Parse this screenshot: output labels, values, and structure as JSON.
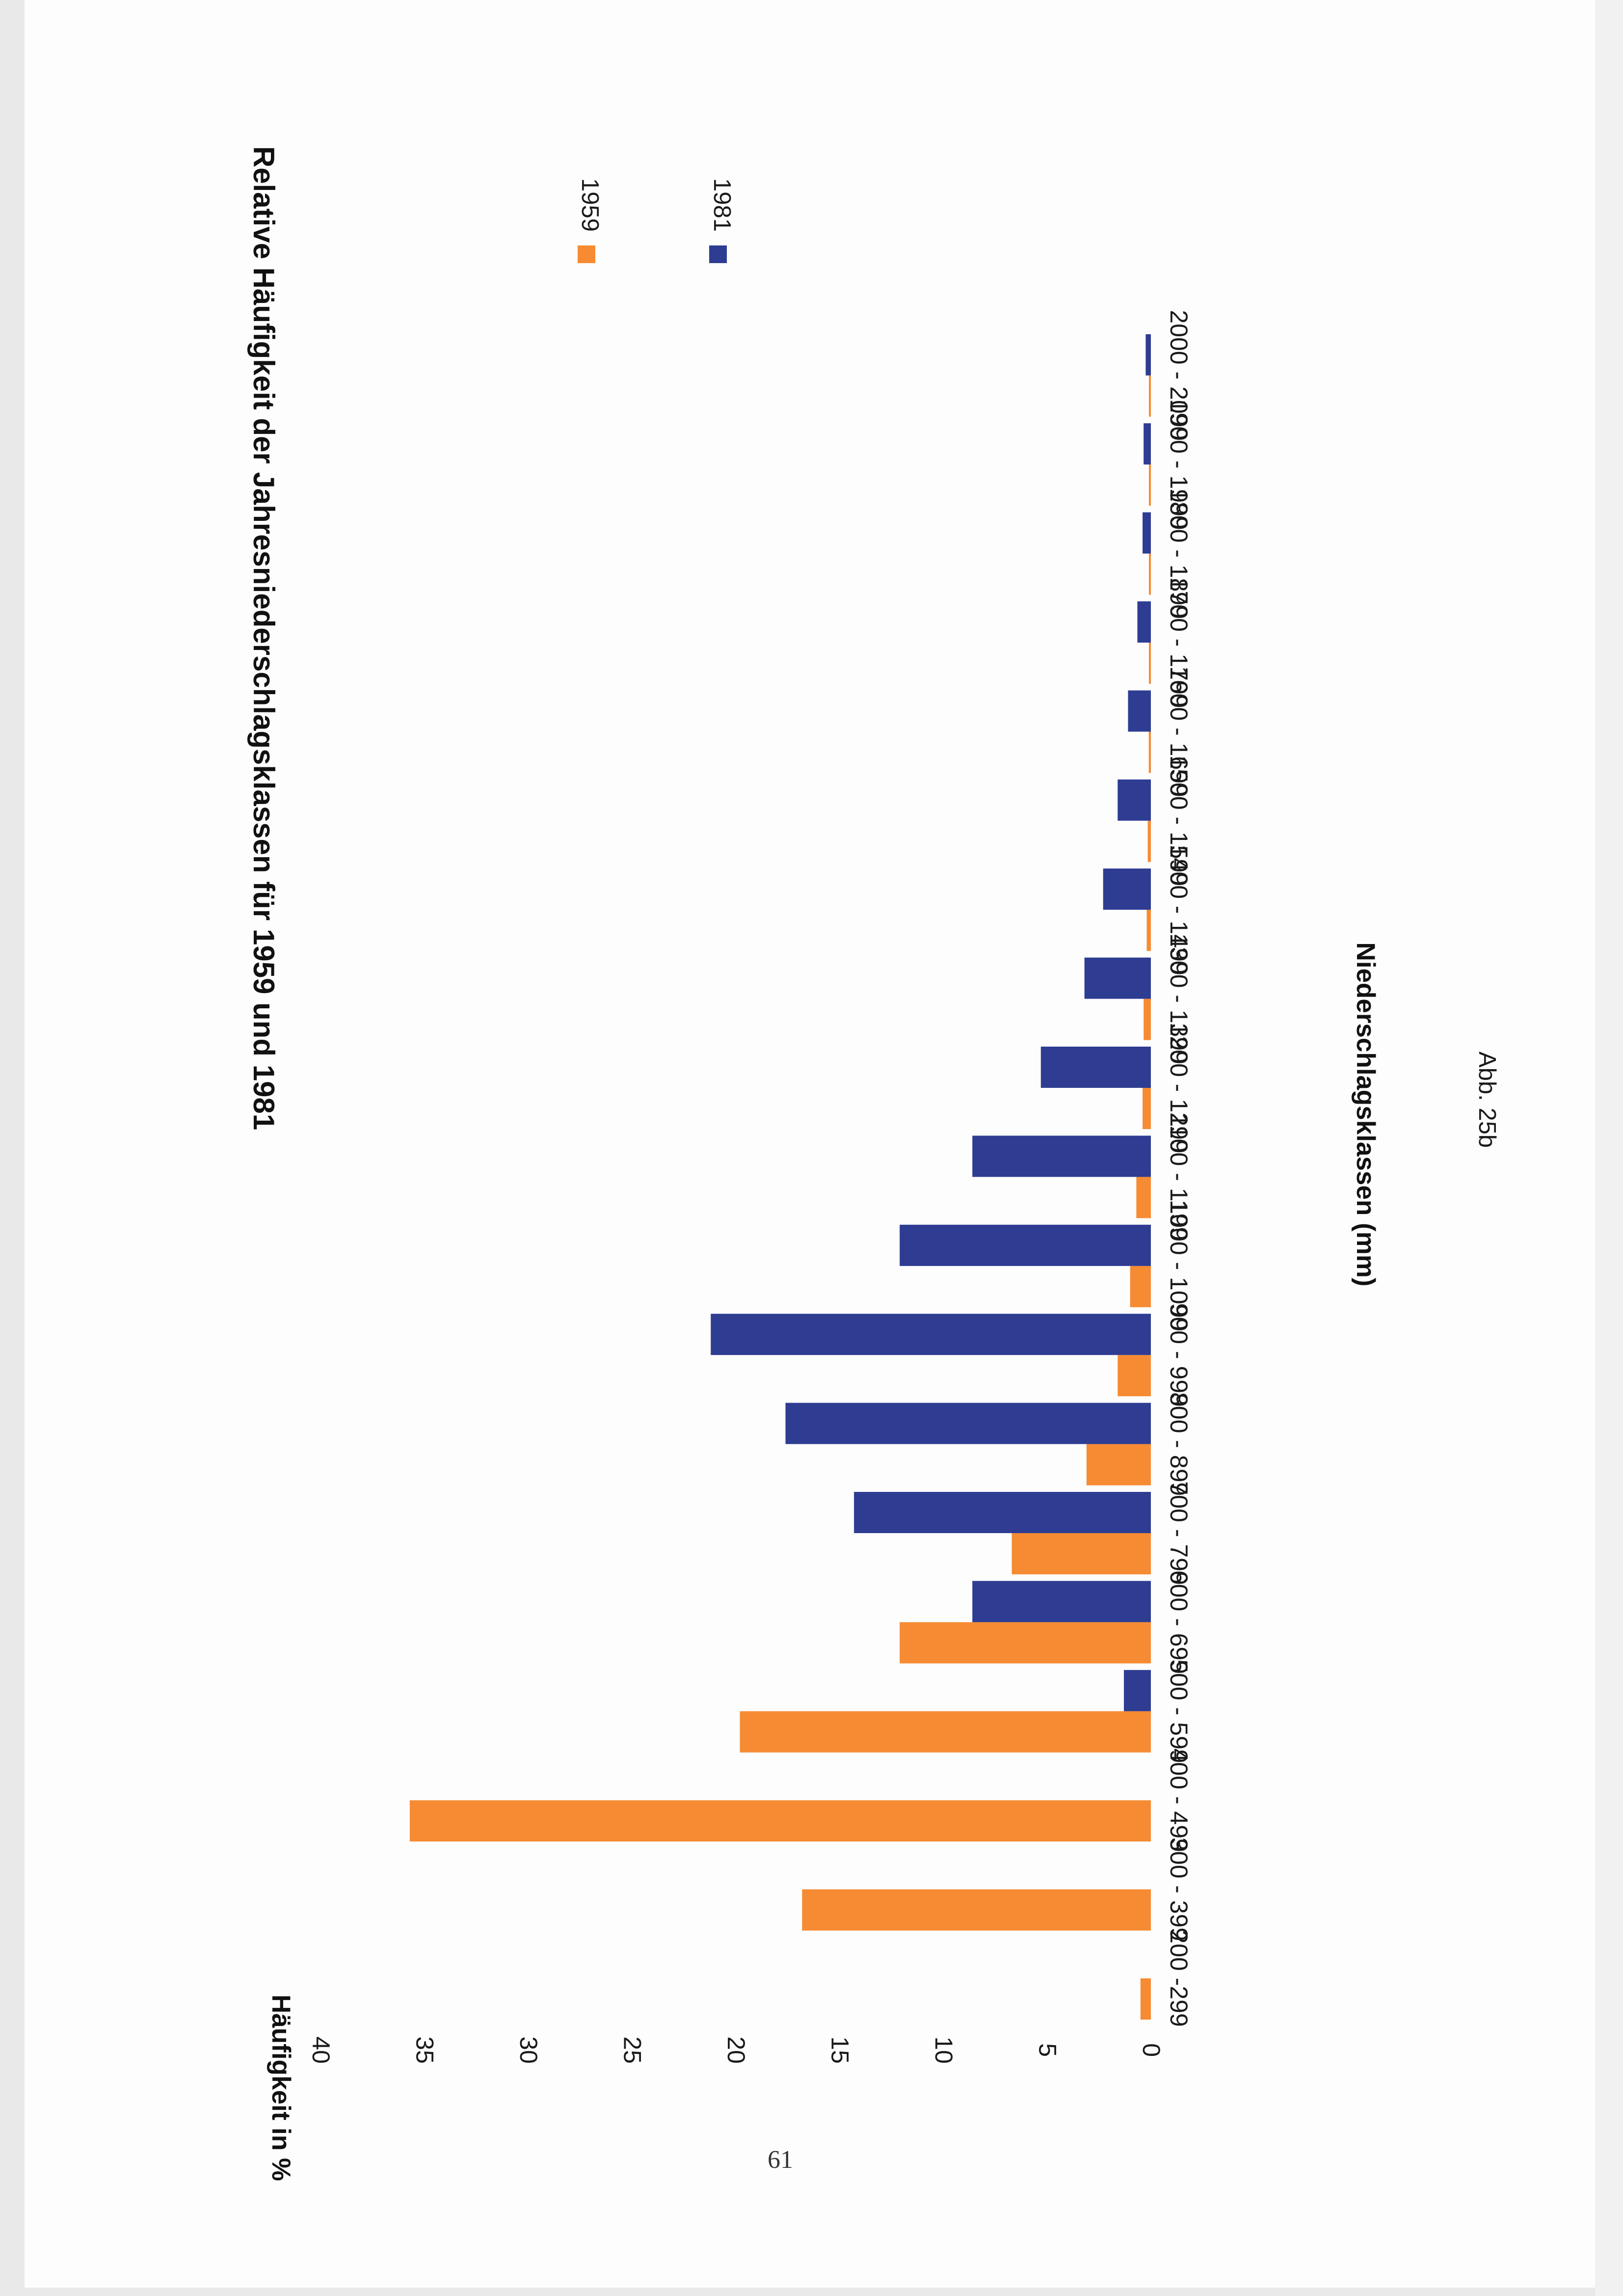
{
  "page": {
    "page_number": "61",
    "figure_label": "Abb. 25b"
  },
  "colors": {
    "series_1959": "#f68b33",
    "series_1981": "#2e3c92"
  },
  "chart_data": {
    "type": "bar",
    "orientation": "horizontal",
    "title": "Relative Häufigkeit der Jahresniederschlagsklassen für 1959 und 1981",
    "xlabel": "Häufigkeit in %",
    "ylabel": "Niederschlagsklassen (mm)",
    "xlim": [
      0,
      40
    ],
    "xticks": [
      "0",
      "5",
      "10",
      "15",
      "20",
      "25",
      "30",
      "35",
      "40"
    ],
    "categories": [
      "200 -299",
      "300 - 399",
      "400 - 499",
      "500 - 599",
      "600 - 699",
      "700 - 799",
      "800 - 899",
      "900 - 999",
      "1000 - 1099",
      "1100 - 1199",
      "1200 - 1299",
      "1300 - 1399",
      "1400 - 1499",
      "1500 - 1599",
      "1600 - 1699",
      "1700 - 1799",
      "1800 - 1899",
      "1900 - 1999",
      "2000 - 2099"
    ],
    "series": [
      {
        "name": "1959",
        "values": [
          0.5,
          16.8,
          35.7,
          19.8,
          12.1,
          6.7,
          3.1,
          1.6,
          1.0,
          0.7,
          0.4,
          0.35,
          0.2,
          0.15,
          0.1,
          0.05,
          0.05,
          0.05,
          0.05
        ]
      },
      {
        "name": "1981",
        "values": [
          0,
          0,
          0,
          1.3,
          8.6,
          14.3,
          17.6,
          21.2,
          12.1,
          8.6,
          5.3,
          3.2,
          2.3,
          1.6,
          1.1,
          0.65,
          0.4,
          0.35,
          0.25
        ]
      }
    ],
    "legend": [
      "1959",
      "1981"
    ],
    "legend_position": "top-right"
  }
}
